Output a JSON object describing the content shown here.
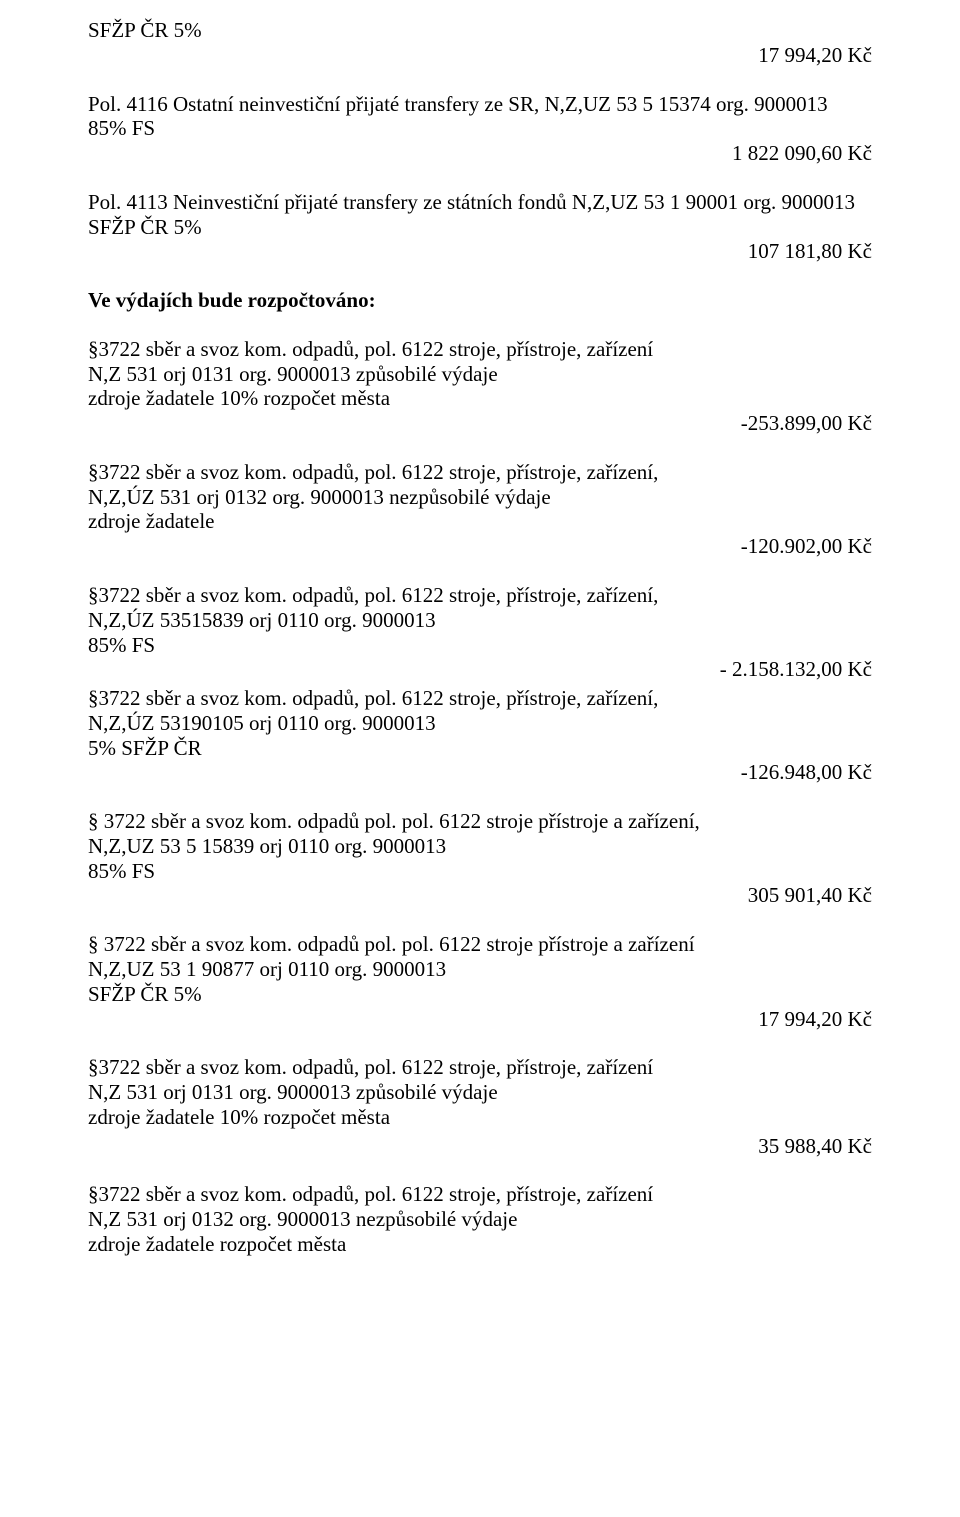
{
  "colors": {
    "text": "#000000",
    "background": "#ffffff"
  },
  "font": {
    "family": "Times New Roman",
    "size_pt": 16
  },
  "lines": {
    "l1": "SFŽP ČR 5%",
    "a1": "17 994,20 Kč",
    "l2a": "Pol. 4116 Ostatní neinvestiční přijaté transfery ze SR,  N,Z,UZ  53 5 15374   org.  9000013",
    "l2b": "85%  FS",
    "a2": "1 822 090,60 Kč",
    "l3a": "Pol. 4113 Neinvestiční přijaté transfery ze státních fondů N,Z,UZ  53 1 90001 org.  9000013",
    "l3b": "SFŽP ČR 5%",
    "a3": "107 181,80 Kč",
    "h1": "Ve výdajích bude rozpočtováno:",
    "l4a": "§3722 sběr a svoz kom. odpadů, pol. 6122 stroje, přístroje, zařízení",
    "l4b": "N,Z 531  orj 0131 org. 9000013 způsobilé výdaje",
    "l4c": "zdroje žadatele 10%  rozpočet města",
    "a4": "-253.899,00 Kč",
    "l5a": "§3722 sběr a svoz kom. odpadů, pol. 6122 stroje, přístroje, zařízení,",
    "l5b": "N,Z,ÚZ 531  orj 0132 org. 9000013 nezpůsobilé výdaje",
    "l5c": "zdroje žadatele",
    "a5": "-120.902,00 Kč",
    "l6a": "§3722 sběr a svoz kom. odpadů, pol. 6122 stroje, přístroje, zařízení,",
    "l6b": "N,Z,ÚZ 53515839 orj 0110 org. 9000013",
    "l6c": "85% FS",
    "a6": "- 2.158.132,00 Kč",
    "l7a": "§3722 sběr a svoz kom. odpadů, pol. 6122 stroje, přístroje, zařízení,",
    "l7b": "N,Z,ÚZ 53190105 orj 0110 org. 9000013",
    "l7c": "5% SFŽP ČR",
    "a7": "-126.948,00 Kč",
    "l8a": "§ 3722 sběr a svoz kom. odpadů pol. pol. 6122 stroje přístroje a zařízení,",
    "l8b": "N,Z,UZ  53 5 15839 orj 0110  org. 9000013",
    "l8c": "85%  FS",
    "a8": "305 901,40 Kč",
    "l9a": "§ 3722 sběr a svoz kom. odpadů pol. pol. 6122 stroje přístroje a zařízení",
    "l9b": "N,Z,UZ  53 1 90877 orj 0110 org. 9000013",
    "l9c": "SFŽP ČR 5%",
    "a9": "17 994,20 Kč",
    "l10a": "§3722 sběr a svoz kom. odpadů, pol. 6122 stroje, přístroje, zařízení",
    "l10b": "N,Z 531  orj 0131 org. 9000013  způsobilé výdaje",
    "l10c": "zdroje žadatele  10%  rozpočet města",
    "a10": "35 988,40 Kč",
    "l11a": "§3722 sběr a svoz kom. odpadů, pol. 6122 stroje, přístroje, zařízení",
    "l11b": "N,Z 531  orj 0132 org. 9000013  nezpůsobilé výdaje",
    "l11c": "zdroje žadatele  rozpočet města"
  }
}
